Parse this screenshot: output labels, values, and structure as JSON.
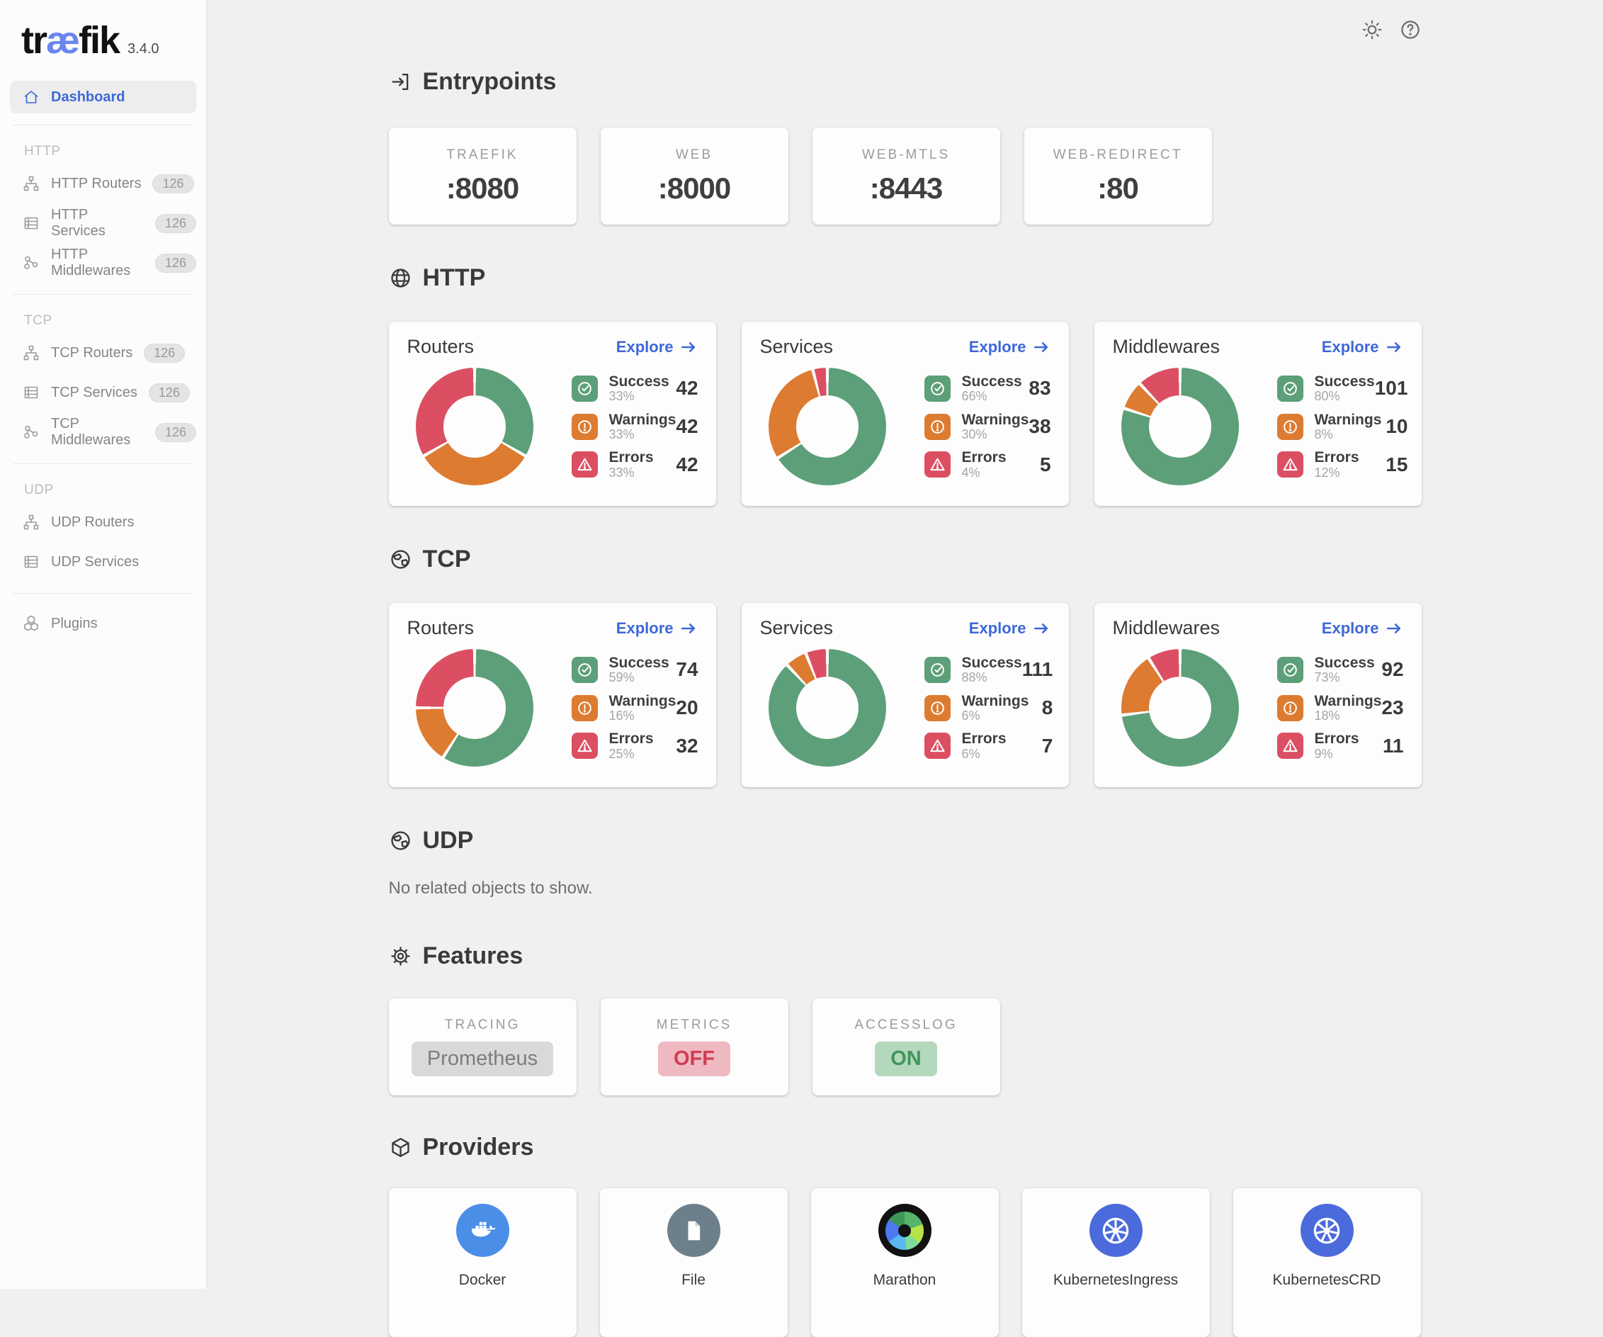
{
  "app": {
    "logo_pre": "tr",
    "logo_ae": "æ",
    "logo_post": "fik",
    "version": "3.4.0"
  },
  "ui": {
    "explore": "Explore"
  },
  "colors": {
    "success": "#5c9f78",
    "warning": "#dd7b31",
    "error": "#dc4f63",
    "accent": "#3d68d8"
  },
  "icons": {
    "topbar": [
      "sun",
      "question-circle"
    ],
    "headings": {
      "entrypoints": "login-arrow",
      "http": "globe",
      "tcp": "globe-alt",
      "udp": "globe-alt",
      "features": "gear",
      "providers": "package"
    }
  },
  "sidebar": {
    "dashboard": {
      "label": "Dashboard",
      "active": true
    },
    "groups": [
      {
        "label": "HTTP",
        "items": [
          {
            "label": "HTTP Routers",
            "badge": "126",
            "icon": "routers"
          },
          {
            "label": "HTTP Services",
            "badge": "126",
            "icon": "services"
          },
          {
            "label": "HTTP Middlewares",
            "badge": "126",
            "icon": "middlewares"
          }
        ]
      },
      {
        "label": "TCP",
        "items": [
          {
            "label": "TCP Routers",
            "badge": "126",
            "icon": "routers"
          },
          {
            "label": "TCP Services",
            "badge": "126",
            "icon": "services"
          },
          {
            "label": "TCP Middlewares",
            "badge": "126",
            "icon": "middlewares"
          }
        ]
      },
      {
        "label": "UDP",
        "items": [
          {
            "label": "UDP Routers",
            "badge": "",
            "icon": "routers"
          },
          {
            "label": "UDP Services",
            "badge": "",
            "icon": "services"
          }
        ]
      }
    ],
    "plugins": {
      "label": "Plugins",
      "icon": "plugins"
    }
  },
  "entrypoints": {
    "title": "Entrypoints",
    "cards": [
      {
        "label": "TRAEFIK",
        "port": ":8080"
      },
      {
        "label": "WEB",
        "port": ":8000"
      },
      {
        "label": "WEB-MTLS",
        "port": ":8443"
      },
      {
        "label": "WEB-REDIRECT",
        "port": ":80"
      }
    ]
  },
  "http": {
    "title": "HTTP",
    "cards": [
      {
        "title": "Routers",
        "chart_type": "donut",
        "stats": [
          {
            "label": "Success",
            "pct": 33,
            "pct_label": "33%",
            "value": "42",
            "kind": "success"
          },
          {
            "label": "Warnings",
            "pct": 33,
            "pct_label": "33%",
            "value": "42",
            "kind": "warning"
          },
          {
            "label": "Errors",
            "pct": 33,
            "pct_label": "33%",
            "value": "42",
            "kind": "error"
          }
        ]
      },
      {
        "title": "Services",
        "chart_type": "donut",
        "stats": [
          {
            "label": "Success",
            "pct": 66,
            "pct_label": "66%",
            "value": "83",
            "kind": "success"
          },
          {
            "label": "Warnings",
            "pct": 30,
            "pct_label": "30%",
            "value": "38",
            "kind": "warning"
          },
          {
            "label": "Errors",
            "pct": 4,
            "pct_label": "4%",
            "value": "5",
            "kind": "error"
          }
        ]
      },
      {
        "title": "Middlewares",
        "chart_type": "donut",
        "stats": [
          {
            "label": "Success",
            "pct": 80,
            "pct_label": "80%",
            "value": "101",
            "kind": "success"
          },
          {
            "label": "Warnings",
            "pct": 8,
            "pct_label": "8%",
            "value": "10",
            "kind": "warning"
          },
          {
            "label": "Errors",
            "pct": 12,
            "pct_label": "12%",
            "value": "15",
            "kind": "error"
          }
        ]
      }
    ]
  },
  "tcp": {
    "title": "TCP",
    "cards": [
      {
        "title": "Routers",
        "chart_type": "donut",
        "stats": [
          {
            "label": "Success",
            "pct": 59,
            "pct_label": "59%",
            "value": "74",
            "kind": "success"
          },
          {
            "label": "Warnings",
            "pct": 16,
            "pct_label": "16%",
            "value": "20",
            "kind": "warning"
          },
          {
            "label": "Errors",
            "pct": 25,
            "pct_label": "25%",
            "value": "32",
            "kind": "error"
          }
        ]
      },
      {
        "title": "Services",
        "chart_type": "donut",
        "stats": [
          {
            "label": "Success",
            "pct": 88,
            "pct_label": "88%",
            "value": "111",
            "kind": "success"
          },
          {
            "label": "Warnings",
            "pct": 6,
            "pct_label": "6%",
            "value": "8",
            "kind": "warning"
          },
          {
            "label": "Errors",
            "pct": 6,
            "pct_label": "6%",
            "value": "7",
            "kind": "error"
          }
        ]
      },
      {
        "title": "Middlewares",
        "chart_type": "donut",
        "stats": [
          {
            "label": "Success",
            "pct": 73,
            "pct_label": "73%",
            "value": "92",
            "kind": "success"
          },
          {
            "label": "Warnings",
            "pct": 18,
            "pct_label": "18%",
            "value": "23",
            "kind": "warning"
          },
          {
            "label": "Errors",
            "pct": 9,
            "pct_label": "9%",
            "value": "11",
            "kind": "error"
          }
        ]
      }
    ]
  },
  "udp": {
    "title": "UDP",
    "empty": "No related objects to show."
  },
  "features": {
    "title": "Features",
    "cards": [
      {
        "label": "TRACING",
        "value": "Prometheus",
        "state": "neutral"
      },
      {
        "label": "METRICS",
        "value": "OFF",
        "state": "off"
      },
      {
        "label": "ACCESSLOG",
        "value": "ON",
        "state": "on"
      }
    ]
  },
  "providers": {
    "title": "Providers",
    "items": [
      {
        "name": "Docker",
        "icon": "docker-whale"
      },
      {
        "name": "File",
        "icon": "file-document"
      },
      {
        "name": "Marathon",
        "icon": "marathon-ring"
      },
      {
        "name": "KubernetesIngress",
        "icon": "kubernetes-wheel"
      },
      {
        "name": "KubernetesCRD",
        "icon": "kubernetes-wheel"
      }
    ]
  }
}
